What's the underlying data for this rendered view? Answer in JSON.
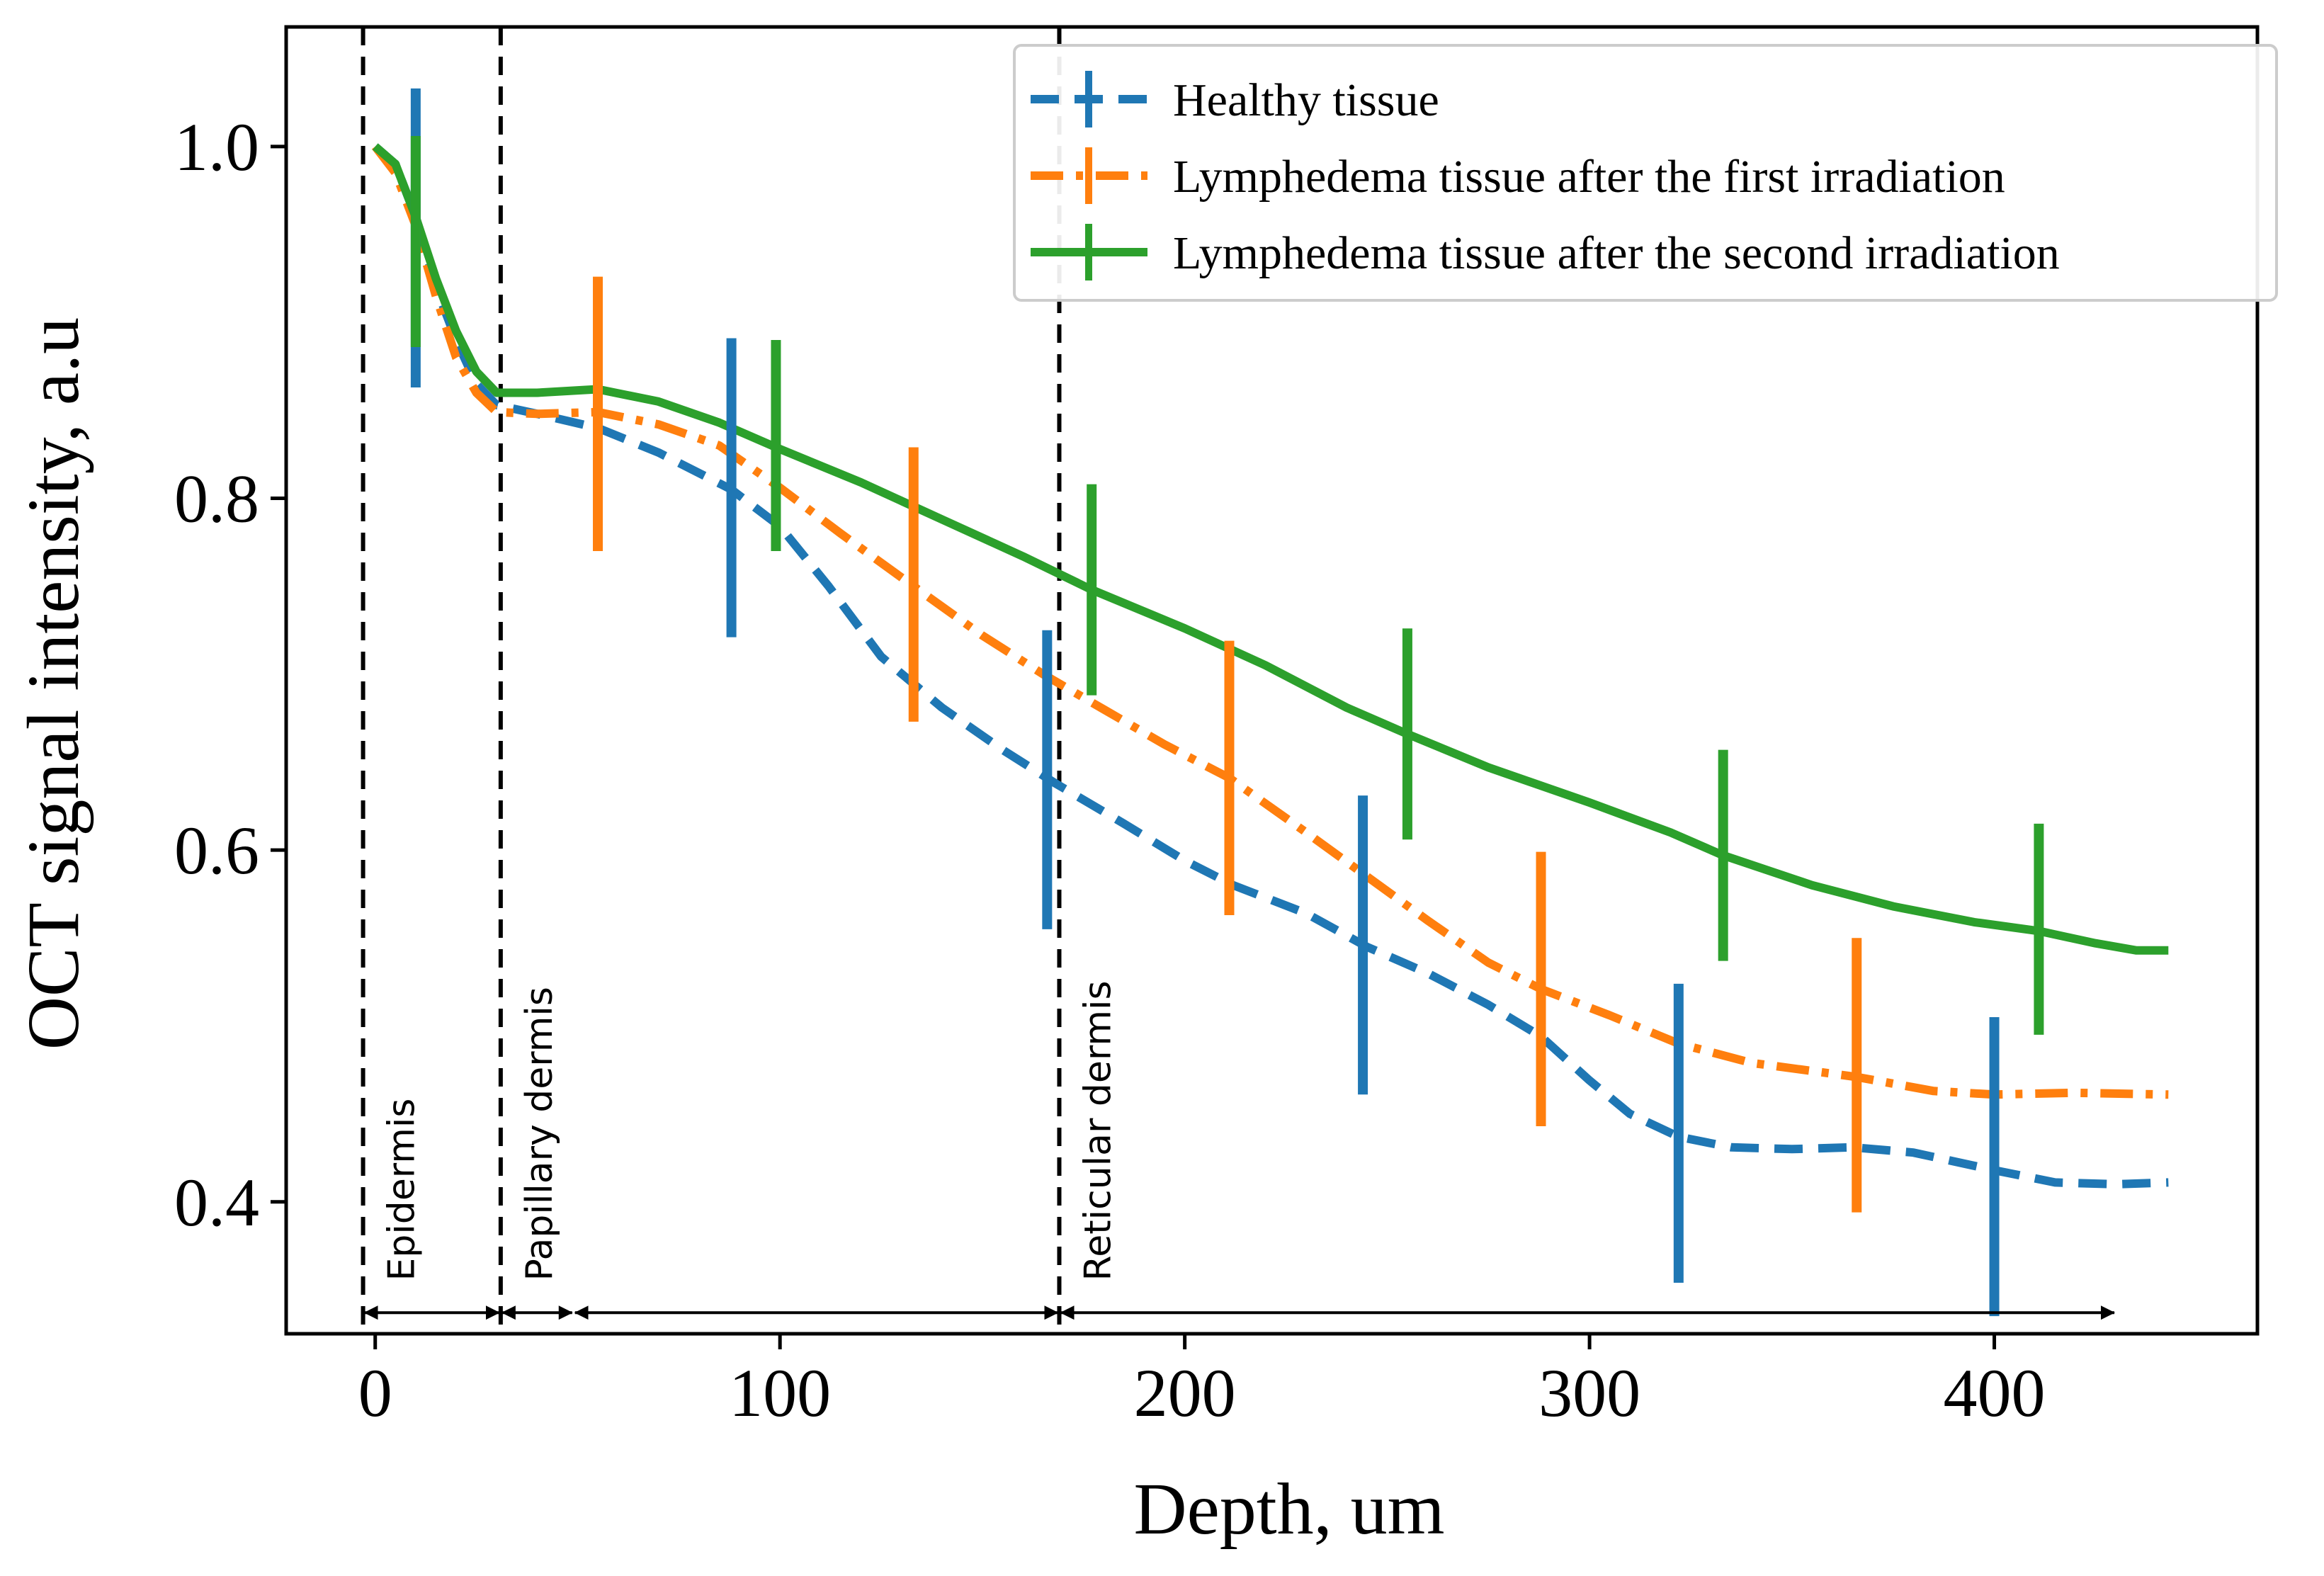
{
  "chart_data": {
    "type": "line",
    "title": "",
    "xlabel": "Depth, um",
    "ylabel": "OCT signal intensity, a.u",
    "xlim": [
      -22,
      465
    ],
    "ylim": [
      0.325,
      1.068
    ],
    "xticks": [
      0,
      100,
      200,
      300,
      400
    ],
    "xtick_labels": [
      "0",
      "100",
      "200",
      "300",
      "400"
    ],
    "yticks": [
      0.4,
      0.6,
      0.8,
      1.0
    ],
    "ytick_labels": [
      "0.4",
      "0.6",
      "0.8",
      "1.0"
    ],
    "grid": false,
    "legend_position": "top-right",
    "series": [
      {
        "name": "Healthy tissue",
        "color": "#1f77b4",
        "style": "dashed",
        "points": [
          [
            0,
            1.0
          ],
          [
            5,
            0.99
          ],
          [
            10,
            0.96
          ],
          [
            15,
            0.92
          ],
          [
            20,
            0.89
          ],
          [
            25,
            0.865
          ],
          [
            30,
            0.853
          ],
          [
            40,
            0.848
          ],
          [
            55,
            0.84
          ],
          [
            70,
            0.826
          ],
          [
            88,
            0.805
          ],
          [
            100,
            0.784
          ],
          [
            112,
            0.75
          ],
          [
            125,
            0.71
          ],
          [
            140,
            0.681
          ],
          [
            155,
            0.657
          ],
          [
            168,
            0.638
          ],
          [
            185,
            0.615
          ],
          [
            200,
            0.594
          ],
          [
            212,
            0.58
          ],
          [
            230,
            0.564
          ],
          [
            245,
            0.545
          ],
          [
            260,
            0.53
          ],
          [
            275,
            0.512
          ],
          [
            288,
            0.494
          ],
          [
            300,
            0.469
          ],
          [
            310,
            0.45
          ],
          [
            322,
            0.437
          ],
          [
            335,
            0.431
          ],
          [
            350,
            0.43
          ],
          [
            365,
            0.431
          ],
          [
            380,
            0.428
          ],
          [
            400,
            0.418
          ],
          [
            415,
            0.411
          ],
          [
            430,
            0.41
          ],
          [
            443,
            0.411
          ]
        ],
        "error_bars": [
          [
            10,
            0.948,
            0.085
          ],
          [
            88,
            0.806,
            0.085
          ],
          [
            166,
            0.64,
            0.085
          ],
          [
            244,
            0.546,
            0.085
          ],
          [
            322,
            0.439,
            0.085
          ],
          [
            400,
            0.42,
            0.085
          ]
        ]
      },
      {
        "name": "Lymphedema tissue after the first irradiation",
        "color": "#ff7f0e",
        "style": "dashdot",
        "points": [
          [
            0,
            1.0
          ],
          [
            5,
            0.985
          ],
          [
            10,
            0.955
          ],
          [
            15,
            0.915
          ],
          [
            20,
            0.88
          ],
          [
            25,
            0.86
          ],
          [
            30,
            0.849
          ],
          [
            40,
            0.848
          ],
          [
            55,
            0.849
          ],
          [
            70,
            0.842
          ],
          [
            85,
            0.83
          ],
          [
            100,
            0.806
          ],
          [
            115,
            0.78
          ],
          [
            133,
            0.75
          ],
          [
            150,
            0.722
          ],
          [
            165,
            0.7
          ],
          [
            180,
            0.68
          ],
          [
            195,
            0.66
          ],
          [
            211,
            0.641
          ],
          [
            230,
            0.61
          ],
          [
            245,
            0.585
          ],
          [
            260,
            0.56
          ],
          [
            275,
            0.536
          ],
          [
            288,
            0.521
          ],
          [
            305,
            0.506
          ],
          [
            322,
            0.49
          ],
          [
            340,
            0.479
          ],
          [
            366,
            0.471
          ],
          [
            385,
            0.463
          ],
          [
            400,
            0.461
          ],
          [
            420,
            0.462
          ],
          [
            443,
            0.461
          ]
        ],
        "error_bars": [
          [
            55,
            0.848,
            0.078
          ],
          [
            133,
            0.751,
            0.078
          ],
          [
            211,
            0.641,
            0.078
          ],
          [
            288,
            0.521,
            0.078
          ],
          [
            366,
            0.472,
            0.078
          ]
        ]
      },
      {
        "name": "Lymphedema tissue after the second irradiation",
        "color": "#2ca02c",
        "style": "solid",
        "points": [
          [
            0,
            1.0
          ],
          [
            5,
            0.99
          ],
          [
            10,
            0.96
          ],
          [
            15,
            0.925
          ],
          [
            20,
            0.895
          ],
          [
            25,
            0.872
          ],
          [
            30,
            0.86
          ],
          [
            40,
            0.86
          ],
          [
            55,
            0.862
          ],
          [
            70,
            0.855
          ],
          [
            85,
            0.843
          ],
          [
            100,
            0.828
          ],
          [
            120,
            0.809
          ],
          [
            140,
            0.788
          ],
          [
            160,
            0.767
          ],
          [
            177,
            0.748
          ],
          [
            200,
            0.726
          ],
          [
            220,
            0.705
          ],
          [
            240,
            0.681
          ],
          [
            255,
            0.666
          ],
          [
            275,
            0.647
          ],
          [
            300,
            0.627
          ],
          [
            320,
            0.61
          ],
          [
            333,
            0.597
          ],
          [
            355,
            0.58
          ],
          [
            375,
            0.568
          ],
          [
            395,
            0.559
          ],
          [
            411,
            0.554
          ],
          [
            425,
            0.547
          ],
          [
            435,
            0.543
          ],
          [
            443,
            0.543
          ]
        ],
        "error_bars": [
          [
            10,
            0.946,
            0.06
          ],
          [
            99,
            0.83,
            0.06
          ],
          [
            177,
            0.748,
            0.06
          ],
          [
            255,
            0.666,
            0.06
          ],
          [
            333,
            0.597,
            0.06
          ],
          [
            411,
            0.555,
            0.06
          ]
        ]
      }
    ],
    "regions": [
      {
        "label": "Epidermis",
        "x_start": -3,
        "x_end": 31
      },
      {
        "label": "Papillary dermis",
        "x_start": 31,
        "x_end": 49
      },
      {
        "label": "Reticular dermis",
        "x_start": 169,
        "x_end": 430
      }
    ],
    "region_boundaries": [
      -3,
      31,
      169
    ],
    "region_arrows": [
      {
        "x_start": -3,
        "x_end": 31
      },
      {
        "x_start": 31,
        "x_end": 49
      },
      {
        "x_start": 49,
        "x_end": 169
      },
      {
        "x_start": 169,
        "x_end": 430
      }
    ],
    "arrow_y": 0.337
  }
}
